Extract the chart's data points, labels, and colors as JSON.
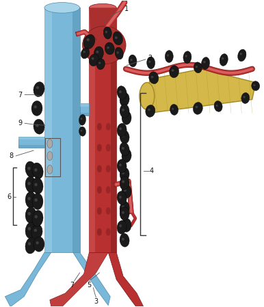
{
  "bg_color": "#ffffff",
  "fig_width": 3.86,
  "fig_height": 4.49,
  "vc_color": "#7ab8d9",
  "vc_dark": "#4a8aaa",
  "vc_light": "#a8d4ea",
  "ao_color": "#b83030",
  "ao_dark": "#7a1a1a",
  "ao_mid": "#c84040",
  "ao_light": "#d86060",
  "pan_color": "#d4b84a",
  "pan_dark": "#a08828",
  "pan_light": "#e8d478",
  "ln_color": "#1a1a1a",
  "ln_hi": "#4a4a4a",
  "gray_color": "#909090",
  "label_fs": 7.0,
  "label_color": "#111111",
  "line_color": "#555555"
}
